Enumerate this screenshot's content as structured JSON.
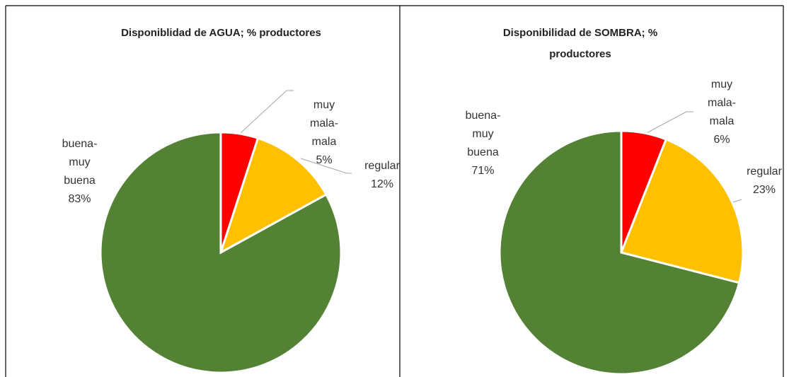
{
  "chart_data": [
    {
      "type": "pie",
      "title": "Disponiblidad de AGUA; % productores",
      "categories": [
        "muy mala-mala",
        "regular",
        "buena-muy buena"
      ],
      "values": [
        5,
        12,
        83
      ],
      "value_labels": [
        "5%",
        "12%",
        "83%"
      ],
      "colors": [
        "#ff0000",
        "#ffc000",
        "#548235"
      ]
    },
    {
      "type": "pie",
      "title": "Disponibilidad de SOMBRA; % productores",
      "categories": [
        "muy mala-mala",
        "regular",
        "buena-muy buena"
      ],
      "values": [
        6,
        23,
        71
      ],
      "value_labels": [
        "6%",
        "23%",
        "71%"
      ],
      "colors": [
        "#ff0000",
        "#ffc000",
        "#548235"
      ]
    }
  ]
}
